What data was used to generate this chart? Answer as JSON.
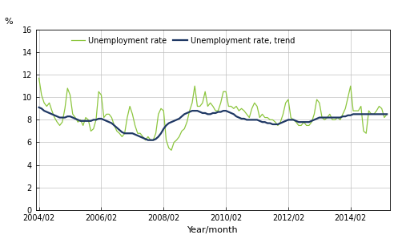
{
  "xlabel": "Year/month",
  "ylabel": "%",
  "ylim": [
    0,
    16
  ],
  "yticks": [
    0,
    2,
    4,
    6,
    8,
    10,
    12,
    14,
    16
  ],
  "xtick_labels": [
    "2004/02",
    "2006/02",
    "2008/02",
    "2010/02",
    "2012/02",
    "2014/02"
  ],
  "legend_labels": [
    "Unemployment rate",
    "Unemployment rate, trend"
  ],
  "line_color_raw": "#8dc63f",
  "line_color_trend": "#1f3864",
  "background_color": "#ffffff",
  "grid_color": "#c0c0c0",
  "start_year": 2004,
  "start_month": 2,
  "raw_values": [
    11.7,
    10.2,
    9.5,
    9.2,
    9.5,
    8.8,
    8.2,
    7.8,
    7.5,
    7.8,
    9.0,
    10.8,
    10.2,
    8.5,
    8.2,
    7.8,
    8.0,
    7.5,
    8.2,
    8.0,
    7.0,
    7.2,
    8.0,
    10.5,
    10.2,
    8.2,
    8.5,
    8.5,
    8.2,
    7.5,
    7.0,
    6.8,
    6.5,
    6.8,
    8.2,
    9.2,
    8.5,
    7.5,
    6.8,
    6.8,
    6.5,
    6.2,
    6.5,
    6.2,
    6.2,
    6.8,
    8.5,
    9.0,
    8.8,
    6.2,
    5.5,
    5.3,
    6.0,
    6.2,
    6.5,
    7.0,
    7.2,
    7.8,
    8.8,
    9.5,
    11.0,
    9.2,
    9.2,
    9.5,
    10.5,
    9.2,
    9.5,
    9.2,
    8.8,
    8.8,
    9.5,
    10.5,
    10.5,
    9.2,
    9.2,
    9.0,
    9.2,
    8.8,
    9.0,
    8.8,
    8.5,
    8.2,
    9.0,
    9.5,
    9.2,
    8.2,
    8.5,
    8.2,
    8.2,
    8.0,
    8.0,
    7.8,
    7.5,
    7.8,
    8.5,
    9.5,
    9.8,
    8.2,
    8.0,
    7.8,
    7.5,
    7.5,
    7.8,
    7.5,
    7.5,
    7.8,
    8.5,
    9.8,
    9.5,
    8.2,
    8.0,
    8.2,
    8.5,
    8.0,
    8.0,
    8.2,
    8.0,
    8.5,
    9.0,
    10.0,
    11.0,
    8.8,
    8.8,
    8.8,
    9.2,
    7.0,
    6.8,
    8.8,
    8.5,
    8.5,
    8.8,
    9.2,
    9.0,
    8.2,
    8.5
  ],
  "trend_values": [
    9.1,
    9.0,
    8.8,
    8.7,
    8.6,
    8.5,
    8.4,
    8.3,
    8.2,
    8.2,
    8.2,
    8.3,
    8.3,
    8.2,
    8.1,
    8.0,
    7.9,
    7.9,
    7.9,
    7.9,
    7.9,
    8.0,
    8.0,
    8.1,
    8.1,
    8.0,
    7.9,
    7.8,
    7.7,
    7.5,
    7.3,
    7.1,
    6.9,
    6.8,
    6.8,
    6.8,
    6.8,
    6.7,
    6.6,
    6.5,
    6.4,
    6.3,
    6.2,
    6.2,
    6.2,
    6.3,
    6.5,
    6.8,
    7.2,
    7.5,
    7.7,
    7.8,
    7.9,
    8.0,
    8.1,
    8.3,
    8.5,
    8.6,
    8.7,
    8.8,
    8.8,
    8.8,
    8.7,
    8.6,
    8.6,
    8.5,
    8.5,
    8.6,
    8.6,
    8.7,
    8.7,
    8.8,
    8.8,
    8.7,
    8.6,
    8.5,
    8.3,
    8.2,
    8.1,
    8.1,
    8.0,
    8.0,
    8.0,
    8.0,
    8.0,
    7.9,
    7.8,
    7.8,
    7.7,
    7.7,
    7.6,
    7.6,
    7.6,
    7.7,
    7.8,
    7.9,
    8.0,
    8.0,
    8.0,
    7.9,
    7.8,
    7.8,
    7.8,
    7.8,
    7.8,
    7.9,
    8.0,
    8.1,
    8.2,
    8.2,
    8.2,
    8.2,
    8.2,
    8.2,
    8.2,
    8.2,
    8.2,
    8.3,
    8.3,
    8.4,
    8.4,
    8.5,
    8.5,
    8.5,
    8.5,
    8.5,
    8.5,
    8.5,
    8.5,
    8.5,
    8.5,
    8.5,
    8.5,
    8.5,
    8.5
  ]
}
